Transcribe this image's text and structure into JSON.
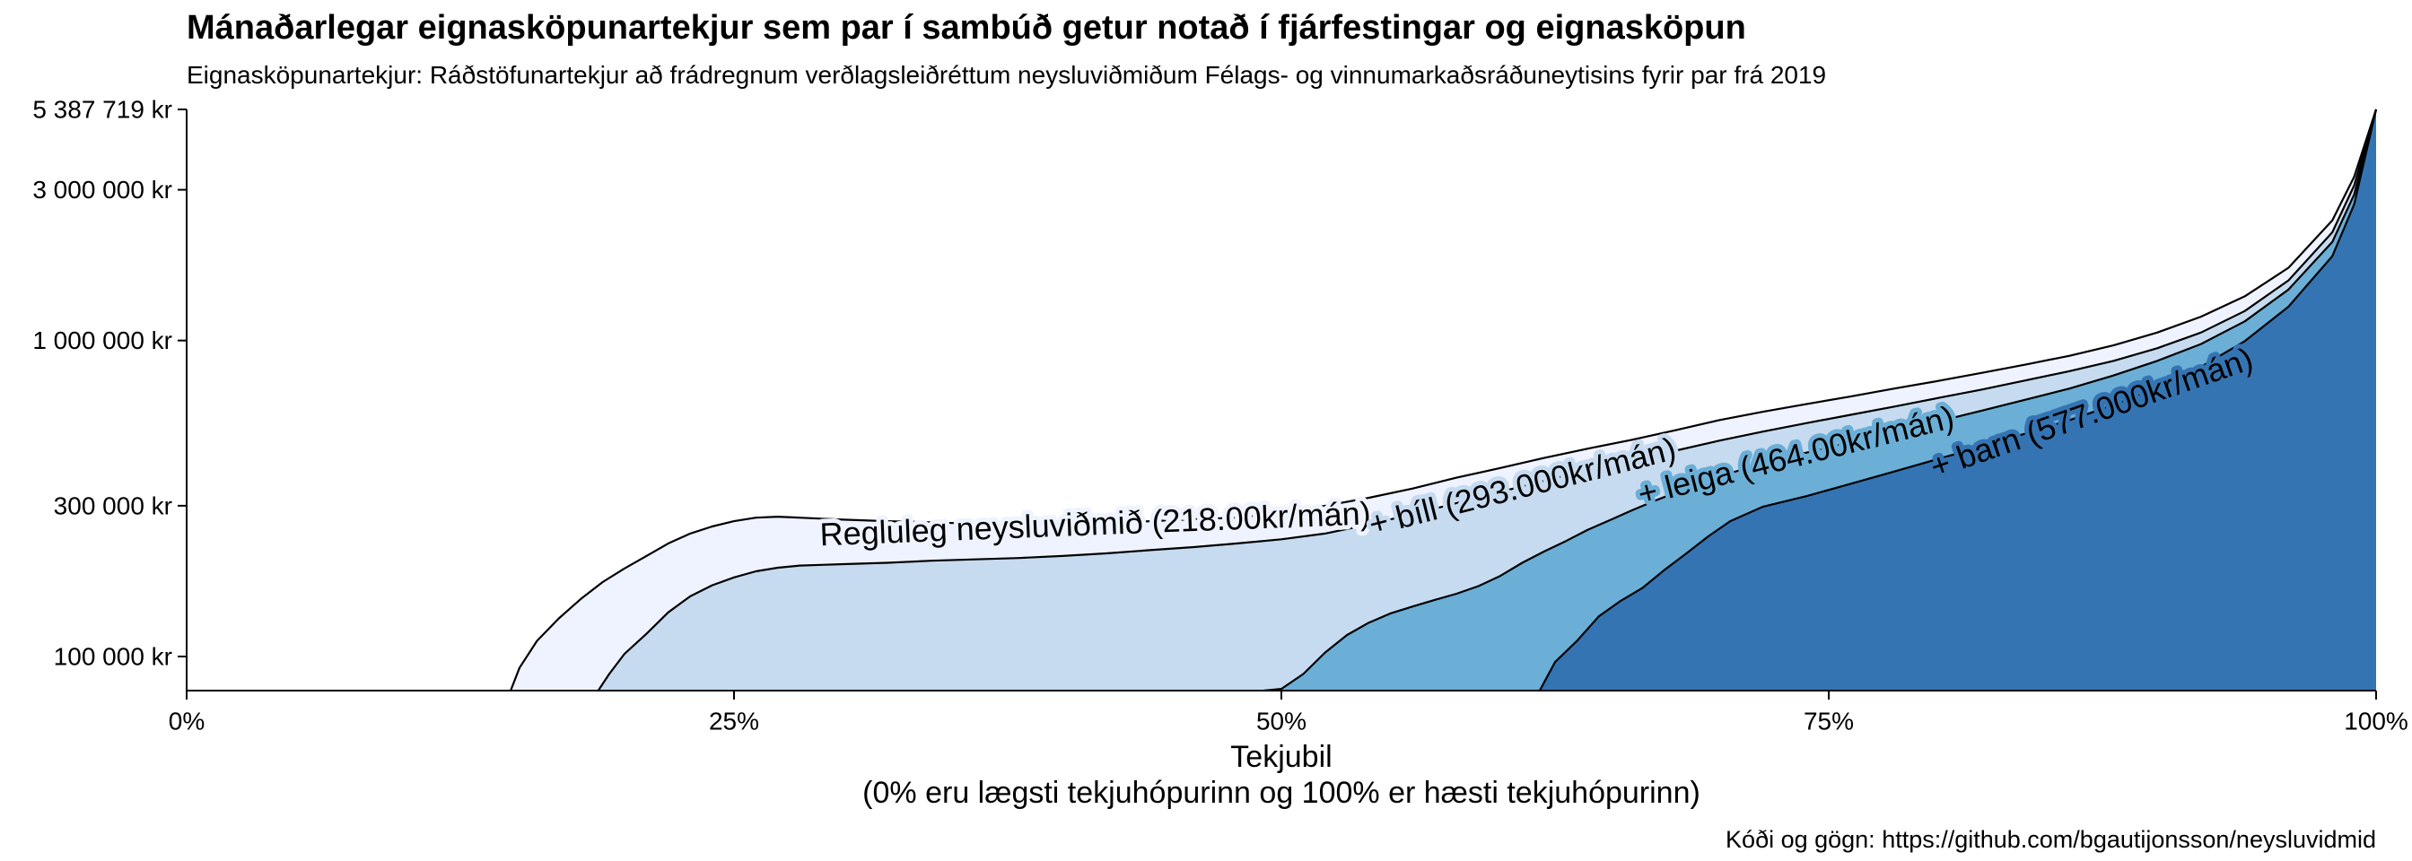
{
  "chart_data": {
    "type": "area",
    "title": "Mánaðarlegar eignasköpunartekjur sem par í sambúð getur notað í fjárfestingar og eignasköpun",
    "subtitle": "Eignasköpunartekjur: Ráðstöfunartekjur að frádregnum verðlagsleiðréttum neysluviðmiðum Félags- og vinnumarkaðsráðuneytisins fyrir par frá 2019",
    "caption": "Kóði og gögn: https://github.com/bgautijonsson/neysluvidmid",
    "xlabel": "Tekjubil",
    "xlabel_note": "(0% eru lægsti tekjuhópurinn og 100% er hæsti tekjuhópurinn)",
    "x_ticks": [
      {
        "value": 0,
        "label": "0%"
      },
      {
        "value": 25,
        "label": "25%"
      },
      {
        "value": 50,
        "label": "50%"
      },
      {
        "value": 75,
        "label": "75%"
      },
      {
        "value": 100,
        "label": "100%"
      }
    ],
    "y_ticks": [
      {
        "value": 100000,
        "label": "100 000 kr"
      },
      {
        "value": 300000,
        "label": "300 000 kr"
      },
      {
        "value": 1000000,
        "label": "1 000 000 kr"
      },
      {
        "value": 3000000,
        "label": "3 000 000 kr"
      },
      {
        "value": 5387719,
        "label": "5 387 719 kr"
      }
    ],
    "y_scale": "log",
    "xlim": [
      0,
      100
    ],
    "ylim": [
      78000,
      5387719
    ],
    "grid": false,
    "legend": "none (labels on curves)",
    "series": [
      {
        "name": "Regluleg neysluviðmið (218.00kr/mán)",
        "color": "#eff3ff",
        "label_x": 41.5,
        "points": [
          [
            14.8,
            78000
          ],
          [
            15.2,
            92000
          ],
          [
            16,
            112000
          ],
          [
            17,
            132000
          ],
          [
            18,
            152000
          ],
          [
            19,
            172000
          ],
          [
            20,
            190000
          ],
          [
            21,
            208000
          ],
          [
            22,
            228000
          ],
          [
            23,
            245000
          ],
          [
            24,
            258000
          ],
          [
            25,
            268000
          ],
          [
            26,
            275000
          ],
          [
            27,
            277000
          ],
          [
            28,
            275000
          ],
          [
            29,
            273000
          ],
          [
            30,
            271000
          ],
          [
            32,
            268000
          ],
          [
            34,
            266000
          ],
          [
            36,
            263000
          ],
          [
            38,
            262000
          ],
          [
            40,
            261000
          ],
          [
            42,
            264000
          ],
          [
            44,
            268000
          ],
          [
            46,
            272000
          ],
          [
            48,
            275000
          ],
          [
            50,
            285000
          ],
          [
            52,
            300000
          ],
          [
            54,
            318000
          ],
          [
            56,
            340000
          ],
          [
            58,
            368000
          ],
          [
            60,
            395000
          ],
          [
            62,
            425000
          ],
          [
            64,
            455000
          ],
          [
            66,
            485000
          ],
          [
            68,
            520000
          ],
          [
            70,
            560000
          ],
          [
            72,
            595000
          ],
          [
            74,
            630000
          ],
          [
            76,
            665000
          ],
          [
            78,
            705000
          ],
          [
            80,
            745000
          ],
          [
            82,
            790000
          ],
          [
            84,
            840000
          ],
          [
            86,
            895000
          ],
          [
            88,
            965000
          ],
          [
            90,
            1060000
          ],
          [
            92,
            1190000
          ],
          [
            94,
            1380000
          ],
          [
            96,
            1700000
          ],
          [
            98,
            2400000
          ],
          [
            99,
            3300000
          ],
          [
            100,
            5387719
          ]
        ]
      },
      {
        "name": "+ bíll (293.000kr/mán)",
        "color": "#c6dbef",
        "label_x": 61,
        "points": [
          [
            18.8,
            78000
          ],
          [
            19.3,
            88000
          ],
          [
            20,
            102000
          ],
          [
            21,
            118000
          ],
          [
            22,
            138000
          ],
          [
            23,
            155000
          ],
          [
            24,
            168000
          ],
          [
            25,
            178000
          ],
          [
            26,
            186000
          ],
          [
            27,
            191000
          ],
          [
            28,
            194000
          ],
          [
            29,
            195000
          ],
          [
            30,
            196000
          ],
          [
            32,
            198000
          ],
          [
            34,
            201000
          ],
          [
            36,
            203000
          ],
          [
            38,
            205000
          ],
          [
            40,
            208000
          ],
          [
            42,
            212000
          ],
          [
            44,
            217000
          ],
          [
            46,
            222000
          ],
          [
            48,
            228000
          ],
          [
            50,
            235000
          ],
          [
            52,
            245000
          ],
          [
            54,
            262000
          ],
          [
            56,
            282000
          ],
          [
            58,
            306000
          ],
          [
            60,
            332000
          ],
          [
            62,
            360000
          ],
          [
            64,
            388000
          ],
          [
            66,
            418000
          ],
          [
            68,
            448000
          ],
          [
            70,
            482000
          ],
          [
            72,
            515000
          ],
          [
            74,
            548000
          ],
          [
            76,
            582000
          ],
          [
            78,
            618000
          ],
          [
            80,
            658000
          ],
          [
            82,
            700000
          ],
          [
            84,
            748000
          ],
          [
            86,
            800000
          ],
          [
            88,
            862000
          ],
          [
            90,
            945000
          ],
          [
            92,
            1060000
          ],
          [
            94,
            1240000
          ],
          [
            96,
            1550000
          ],
          [
            98,
            2200000
          ],
          [
            99,
            3100000
          ],
          [
            100,
            5387719
          ]
        ]
      },
      {
        "name": "+ leiga (464.00kr/mán)",
        "color": "#6baed6",
        "label_x": 73.5,
        "points": [
          [
            49.2,
            78000
          ],
          [
            50,
            79000
          ],
          [
            51,
            88000
          ],
          [
            52,
            103000
          ],
          [
            53,
            117000
          ],
          [
            54,
            128000
          ],
          [
            55,
            137000
          ],
          [
            56,
            144000
          ],
          [
            57,
            151000
          ],
          [
            58,
            158000
          ],
          [
            59,
            167000
          ],
          [
            60,
            180000
          ],
          [
            61,
            198000
          ],
          [
            62,
            215000
          ],
          [
            63,
            232000
          ],
          [
            64,
            252000
          ],
          [
            65,
            270000
          ],
          [
            66,
            290000
          ],
          [
            67,
            310000
          ],
          [
            68,
            330000
          ],
          [
            69,
            350000
          ],
          [
            70,
            372000
          ],
          [
            72,
            408000
          ],
          [
            74,
            442000
          ],
          [
            76,
            478000
          ],
          [
            78,
            515000
          ],
          [
            80,
            555000
          ],
          [
            82,
            600000
          ],
          [
            84,
            650000
          ],
          [
            86,
            705000
          ],
          [
            88,
            775000
          ],
          [
            90,
            862000
          ],
          [
            92,
            975000
          ],
          [
            94,
            1150000
          ],
          [
            96,
            1450000
          ],
          [
            98,
            2050000
          ],
          [
            99,
            2900000
          ],
          [
            100,
            5387719
          ]
        ]
      },
      {
        "name": "+ barn (577.000kr/mán)",
        "color": "#3574b3",
        "label_x": 87,
        "points": [
          [
            61.8,
            78000
          ],
          [
            62.5,
            96000
          ],
          [
            63.5,
            112000
          ],
          [
            64.5,
            134000
          ],
          [
            65.5,
            150000
          ],
          [
            66.5,
            165000
          ],
          [
            67.5,
            188000
          ],
          [
            68.5,
            212000
          ],
          [
            69.5,
            240000
          ],
          [
            70.5,
            268000
          ],
          [
            72,
            298000
          ],
          [
            74,
            322000
          ],
          [
            76,
            352000
          ],
          [
            78,
            385000
          ],
          [
            80,
            422000
          ],
          [
            82,
            462000
          ],
          [
            84,
            508000
          ],
          [
            86,
            560000
          ],
          [
            88,
            625000
          ],
          [
            90,
            710000
          ],
          [
            92,
            825000
          ],
          [
            94,
            995000
          ],
          [
            96,
            1280000
          ],
          [
            98,
            1850000
          ],
          [
            99,
            2700000
          ],
          [
            100,
            5387719
          ]
        ]
      }
    ]
  }
}
